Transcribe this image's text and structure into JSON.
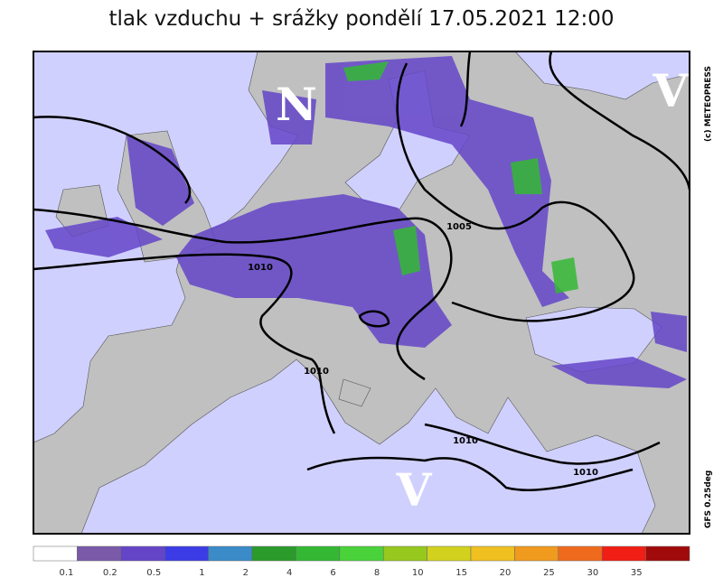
{
  "title": "tlak vzduchu + srážky pondělí 17.05.2021 12:00",
  "pressure_centers": [
    {
      "label": "N"
    },
    {
      "label": "V"
    },
    {
      "label": "V"
    }
  ],
  "isobar_labels": [
    "1005",
    "1010",
    "1010",
    "1010",
    "1010"
  ],
  "credit": "(c) METEOPRESS",
  "model": "GFS 0.25deg",
  "legend": {
    "colors": [
      "#ffffff",
      "#7a5aa8",
      "#6445c8",
      "#3c3ce6",
      "#3a8bc8",
      "#2a9a2a",
      "#34b834",
      "#4ad23a",
      "#96c81e",
      "#d2d21e",
      "#f0c020",
      "#f09a1e",
      "#f06a1e",
      "#f01e14",
      "#a00a0a"
    ],
    "labels": [
      "0.1",
      "0.2",
      "0.5",
      "1",
      "2",
      "4",
      "6",
      "8",
      "10",
      "15",
      "20",
      "25",
      "30",
      "35"
    ]
  }
}
